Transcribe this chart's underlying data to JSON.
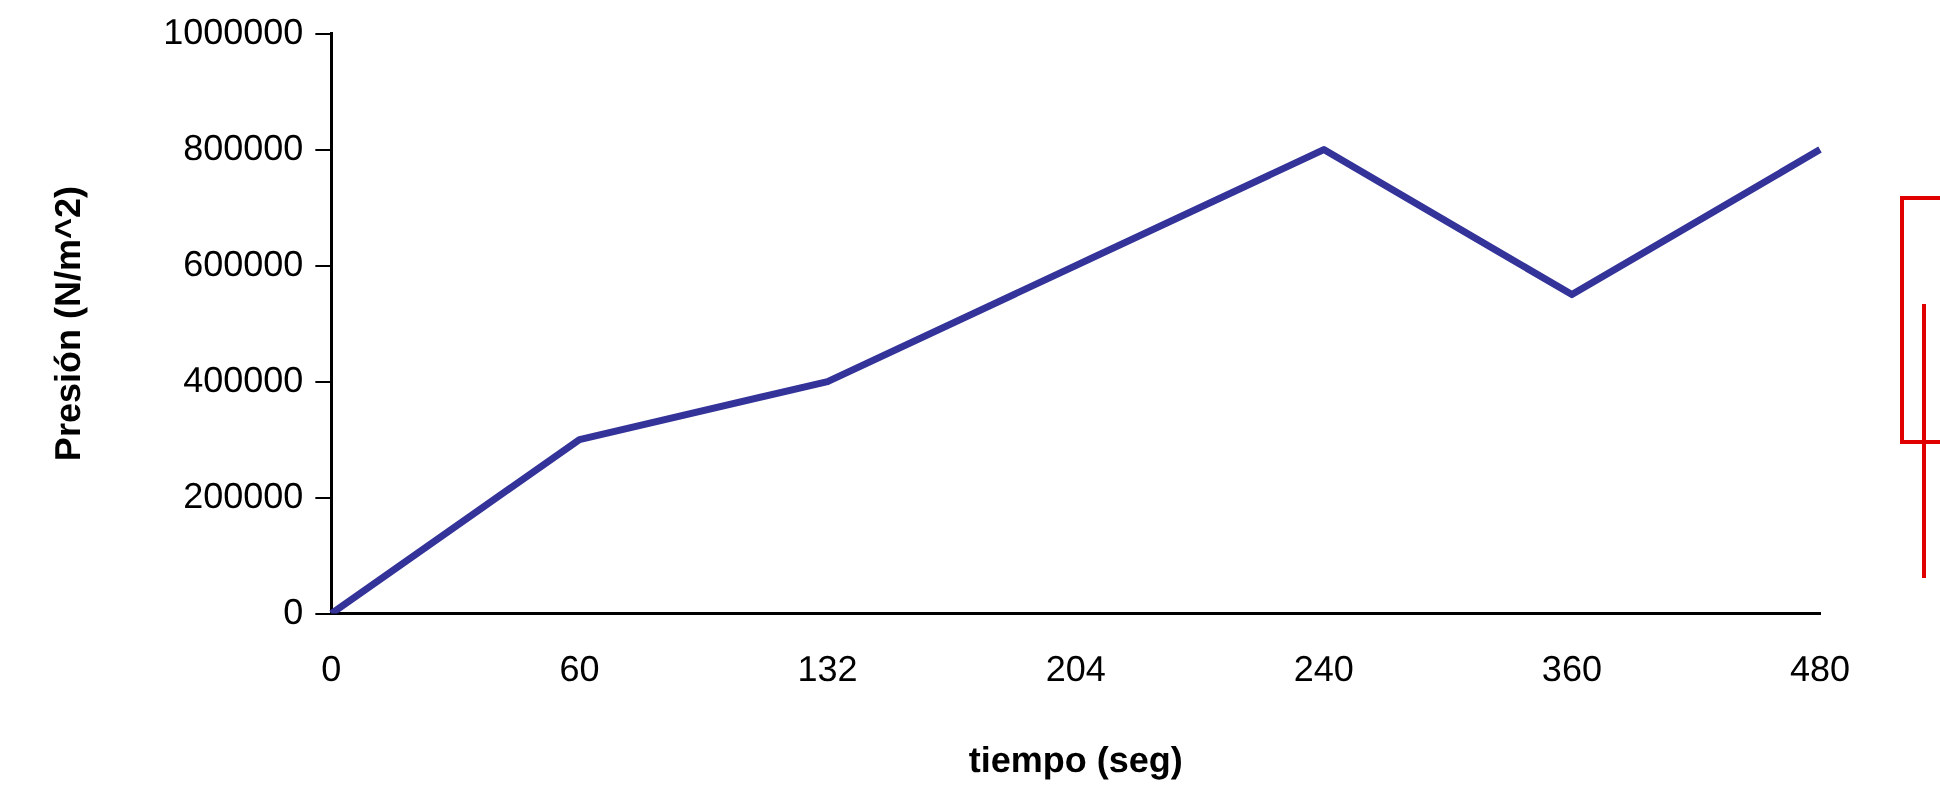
{
  "chart_data": {
    "type": "line",
    "xlabel": "tiempo (seg)",
    "ylabel": "Presión (N/m^2)",
    "categories": [
      "0",
      "60",
      "132",
      "204",
      "240",
      "360",
      "480"
    ],
    "series": [
      {
        "color": "#333399",
        "values": [
          0,
          300000,
          400000,
          600000,
          800000,
          550000,
          800000
        ]
      }
    ],
    "ylim": [
      0,
      1000000
    ],
    "yticks": [
      0,
      200000,
      400000,
      600000,
      800000,
      1000000
    ],
    "grid": false,
    "legend": false,
    "marker": "none",
    "line_style": "solid"
  }
}
